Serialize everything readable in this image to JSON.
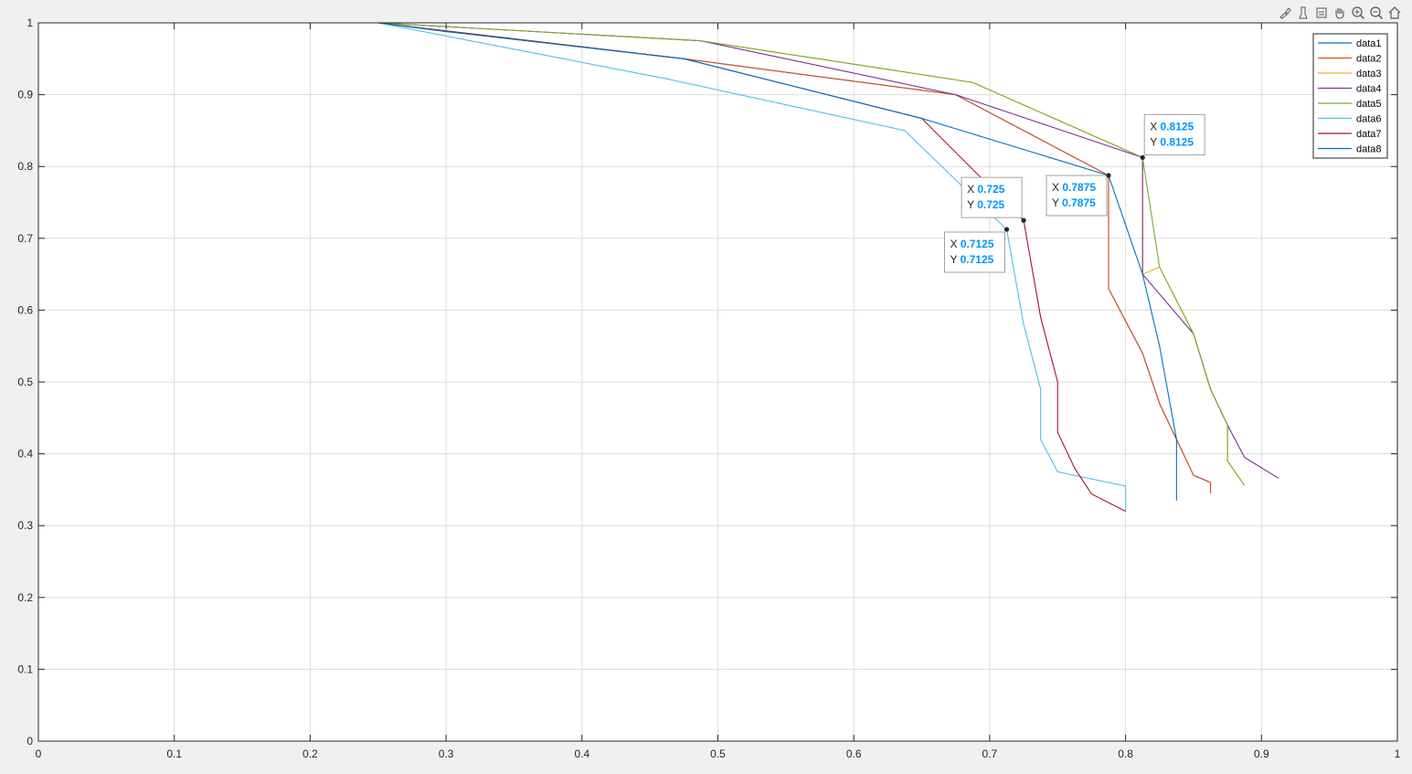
{
  "toolbar": {
    "buttons": [
      "brush-icon",
      "data-tips-icon",
      "rotate-icon",
      "pan-icon",
      "zoom-in-icon",
      "zoom-out-icon",
      "home-icon"
    ]
  },
  "chart_data": {
    "type": "line",
    "title": "",
    "xlabel": "",
    "ylabel": "",
    "xlim": [
      0,
      1
    ],
    "ylim": [
      0,
      1
    ],
    "grid": true,
    "legend_position": "top-right",
    "xticks": [
      "0",
      "0.1",
      "0.2",
      "0.3",
      "0.4",
      "0.5",
      "0.6",
      "0.7",
      "0.8",
      "0.9",
      "1"
    ],
    "yticks": [
      "0",
      "0.1",
      "0.2",
      "0.3",
      "0.4",
      "0.5",
      "0.6",
      "0.7",
      "0.8",
      "0.9",
      "1"
    ],
    "series": [
      {
        "name": "data1",
        "color": "#0072bd",
        "x": [
          0.25,
          0.3,
          0.475,
          0.675,
          0.7875,
          0.7875,
          0.8125,
          0.825,
          0.85,
          0.8625,
          0.8625
        ],
        "y": [
          1.0,
          0.988,
          0.95,
          0.9,
          0.7875,
          0.63,
          0.54,
          0.47,
          0.37,
          0.36,
          0.345
        ]
      },
      {
        "name": "data2",
        "color": "#d95319",
        "x": [
          0.25,
          0.3,
          0.475,
          0.675,
          0.7875,
          0.7875,
          0.8125,
          0.825,
          0.85,
          0.8625,
          0.8625
        ],
        "y": [
          1.0,
          0.988,
          0.95,
          0.9,
          0.7875,
          0.63,
          0.54,
          0.47,
          0.37,
          0.36,
          0.345
        ]
      },
      {
        "name": "data3",
        "color": "#edb120",
        "x": [
          0.25,
          0.4875,
          0.6875,
          0.8125,
          0.8125,
          0.825,
          0.85,
          0.8625,
          0.875,
          0.875,
          0.8875
        ],
        "y": [
          1.0,
          0.975,
          0.917,
          0.8125,
          0.65,
          0.66,
          0.567,
          0.49,
          0.44,
          0.39,
          0.356
        ]
      },
      {
        "name": "data4",
        "color": "#7e2f8e",
        "x": [
          0.25,
          0.4875,
          0.675,
          0.8125,
          0.8125,
          0.85,
          0.8625,
          0.875,
          0.8875,
          0.9125
        ],
        "y": [
          1.0,
          0.975,
          0.9,
          0.8125,
          0.65,
          0.567,
          0.49,
          0.44,
          0.395,
          0.366
        ]
      },
      {
        "name": "data5",
        "color": "#77ac30",
        "x": [
          0.25,
          0.4875,
          0.6875,
          0.8125,
          0.825,
          0.85,
          0.8625,
          0.875,
          0.875,
          0.8875
        ],
        "y": [
          1.0,
          0.975,
          0.917,
          0.8125,
          0.66,
          0.567,
          0.49,
          0.44,
          0.39,
          0.356
        ]
      },
      {
        "name": "data6",
        "color": "#4dbeee",
        "x": [
          0.25,
          0.4625,
          0.6375,
          0.7125,
          0.725,
          0.7375,
          0.7375,
          0.75,
          0.8,
          0.8
        ],
        "y": [
          1.0,
          0.922,
          0.85,
          0.7125,
          0.58,
          0.49,
          0.42,
          0.375,
          0.355,
          0.32
        ]
      },
      {
        "name": "data7",
        "color": "#a2142f",
        "x": [
          0.25,
          0.475,
          0.65,
          0.725,
          0.7375,
          0.75,
          0.75,
          0.7625,
          0.775,
          0.8
        ],
        "y": [
          1.0,
          0.95,
          0.867,
          0.725,
          0.59,
          0.5,
          0.43,
          0.38,
          0.344,
          0.32
        ]
      },
      {
        "name": "data8",
        "color": "#0072bd",
        "x": [
          0.25,
          0.3,
          0.475,
          0.65,
          0.7875,
          0.8125,
          0.825,
          0.8375,
          0.8375
        ],
        "y": [
          1.0,
          0.988,
          0.95,
          0.867,
          0.7875,
          0.65,
          0.55,
          0.42,
          0.335
        ]
      }
    ],
    "datatips": [
      {
        "label_x": "X",
        "label_y": "Y",
        "x": 0.8125,
        "y": 0.8125,
        "x_text": "0.8125",
        "y_text": "0.8125",
        "side": "above-right"
      },
      {
        "label_x": "X",
        "label_y": "Y",
        "x": 0.7875,
        "y": 0.7875,
        "x_text": "0.7875",
        "y_text": "0.7875",
        "side": "below-left"
      },
      {
        "label_x": "X",
        "label_y": "Y",
        "x": 0.725,
        "y": 0.725,
        "x_text": "0.725",
        "y_text": "0.725",
        "side": "above-left"
      },
      {
        "label_x": "X",
        "label_y": "Y",
        "x": 0.7125,
        "y": 0.7125,
        "x_text": "0.7125",
        "y_text": "0.7125",
        "side": "below-left"
      }
    ]
  }
}
